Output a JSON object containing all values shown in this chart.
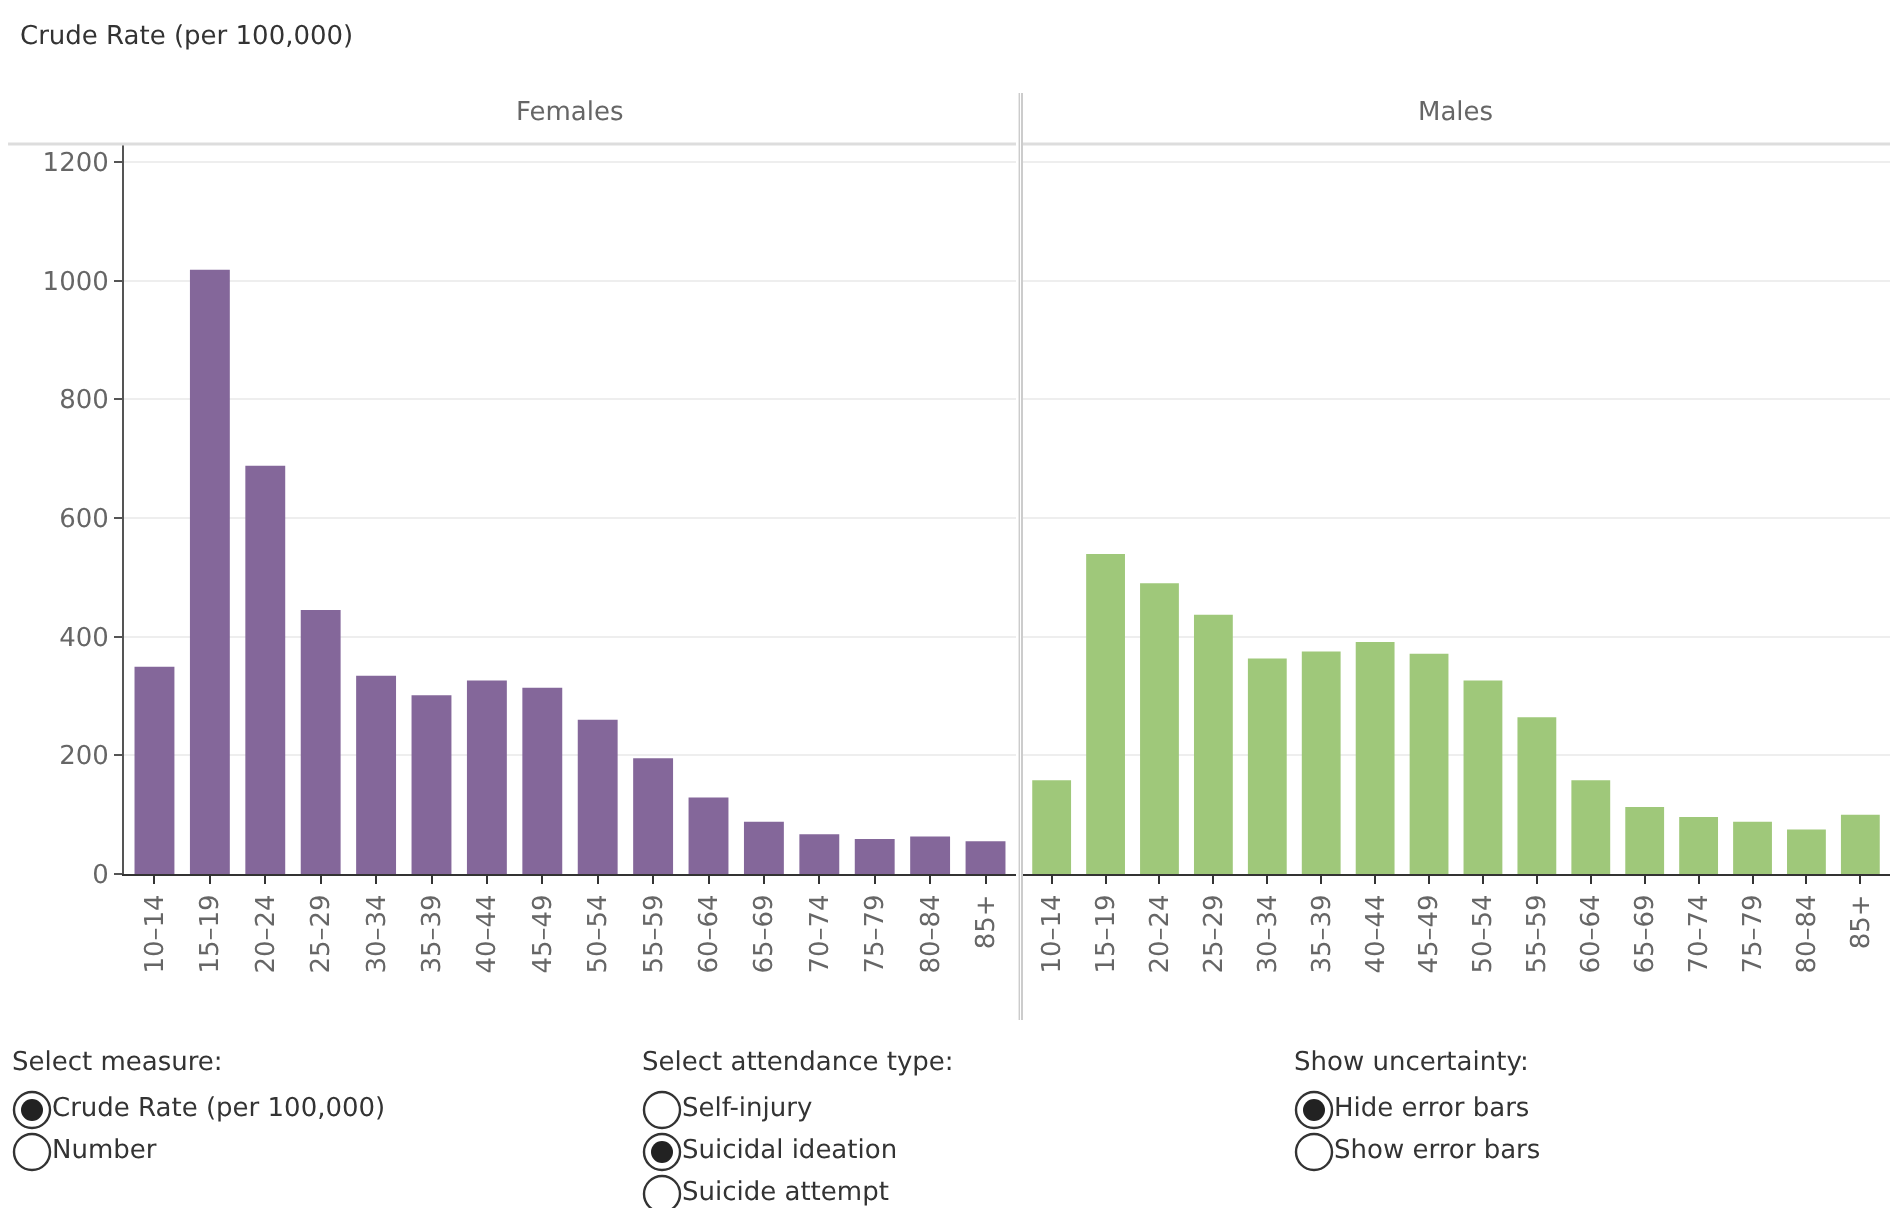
{
  "chart_data": [
    {
      "type": "bar",
      "title": "Females",
      "ylabel": "Crude Rate (per 100,000)",
      "categories": [
        "10–14",
        "15–19",
        "20–24",
        "25–29",
        "30–34",
        "35–39",
        "40–44",
        "45–49",
        "50–54",
        "55–59",
        "60–64",
        "65–69",
        "70–74",
        "75–79",
        "80–84",
        "85+"
      ],
      "series": [
        {
          "color": "#84679a",
          "values": [
            349,
            1018,
            688,
            445,
            334,
            301,
            326,
            314,
            260,
            195,
            129,
            88,
            67,
            59,
            63,
            55
          ]
        }
      ],
      "ylim": [
        0,
        1230
      ],
      "yticks": [
        0,
        200,
        400,
        600,
        800,
        1000,
        1200
      ],
      "grid": "y"
    },
    {
      "type": "bar",
      "title": "Males",
      "categories": [
        "10–14",
        "15–19",
        "20–24",
        "25–29",
        "30–34",
        "35–39",
        "40–44",
        "45–49",
        "50–54",
        "55–59",
        "60–64",
        "65–69",
        "70–74",
        "75–79",
        "80–84",
        "85+"
      ],
      "series": [
        {
          "color": "#9fc87a",
          "values": [
            158,
            539,
            490,
            437,
            363,
            375,
            391,
            371,
            326,
            264,
            158,
            113,
            96,
            88,
            75,
            100
          ]
        }
      ],
      "ylim": [
        0,
        1230
      ],
      "yticks": [
        0,
        200,
        400,
        600,
        800,
        1000,
        1200
      ],
      "grid": "y",
      "tick_labels": "x"
    },
    {
      "type": "other",
      "annotations": [
        "Select measure:",
        "Crude Rate (per 100,000)",
        "Number",
        "Select attendance type:",
        "Self-injury",
        "Suicidal ideation",
        "Suicide attempt",
        "Show uncertainty:",
        "Hide error bars",
        "Show error bars"
      ]
    }
  ]
}
